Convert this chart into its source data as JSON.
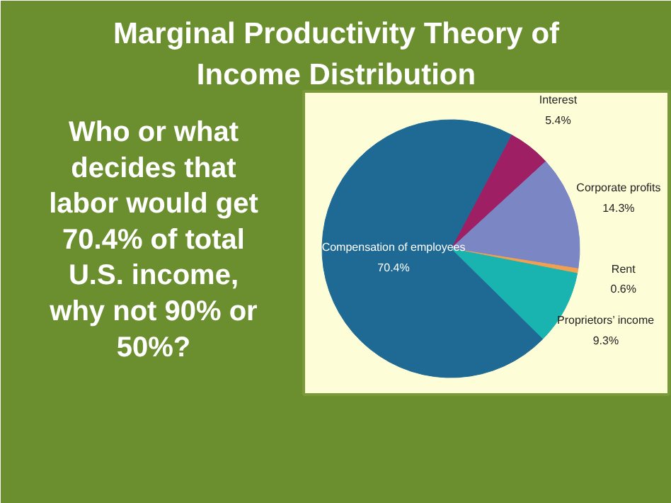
{
  "chart_data": {
    "type": "pie",
    "title": "Marginal Productivity Theory of\nIncome Distribution",
    "annotations": [
      "Who or what\ndecides that\nlabor would get\n70.4% of total\nU.S. income,\nwhy not 90% or\n50%?"
    ],
    "categories": [
      "Interest",
      "Corporate profits",
      "Rent",
      "Proprietors’ income",
      "Compensation of employees"
    ],
    "values": [
      5.4,
      14.3,
      0.6,
      9.3,
      70.4
    ],
    "value_labels": [
      "5.4%",
      "14.3%",
      "0.6%",
      "9.3%",
      "70.4%"
    ],
    "colors": [
      "#9e1f63",
      "#7b86c4",
      "#f0a050",
      "#19b3b0",
      "#1f6a94"
    ]
  }
}
